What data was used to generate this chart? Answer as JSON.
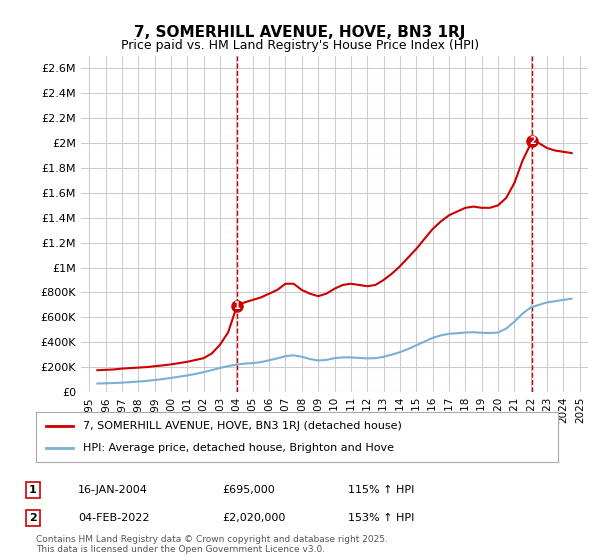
{
  "title": "7, SOMERHILL AVENUE, HOVE, BN3 1RJ",
  "subtitle": "Price paid vs. HM Land Registry's House Price Index (HPI)",
  "legend_line1": "7, SOMERHILL AVENUE, HOVE, BN3 1RJ (detached house)",
  "legend_line2": "HPI: Average price, detached house, Brighton and Hove",
  "annotation1_label": "1",
  "annotation1_date": "16-JAN-2004",
  "annotation1_price": "£695,000",
  "annotation1_hpi": "115% ↑ HPI",
  "annotation1_year": 2004.04,
  "annotation1_value": 695000,
  "annotation2_label": "2",
  "annotation2_date": "04-FEB-2022",
  "annotation2_price": "£2,020,000",
  "annotation2_hpi": "153% ↑ HPI",
  "annotation2_year": 2022.09,
  "annotation2_value": 2020000,
  "footer": "Contains HM Land Registry data © Crown copyright and database right 2025.\nThis data is licensed under the Open Government Licence v3.0.",
  "property_color": "#cc0000",
  "hpi_color": "#7ab0d4",
  "ylim_min": 0,
  "ylim_max": 2700000,
  "ytick_values": [
    0,
    200000,
    400000,
    600000,
    800000,
    1000000,
    1200000,
    1400000,
    1600000,
    1800000,
    2000000,
    2200000,
    2400000,
    2600000
  ],
  "ytick_labels": [
    "£0",
    "£200K",
    "£400K",
    "£600K",
    "£800K",
    "£1M",
    "£1.2M",
    "£1.4M",
    "£1.6M",
    "£1.8M",
    "£2M",
    "£2.2M",
    "£2.4M",
    "£2.6M"
  ],
  "xlim_min": 1994.5,
  "xlim_max": 2025.5,
  "property_years": [
    1995.5,
    1996.0,
    1996.5,
    1997.0,
    1997.5,
    1998.0,
    1998.5,
    1999.0,
    1999.5,
    2000.0,
    2000.5,
    2001.0,
    2001.5,
    2002.0,
    2002.5,
    2003.0,
    2003.5,
    2004.04,
    2004.5,
    2005.0,
    2005.5,
    2006.0,
    2006.5,
    2007.0,
    2007.5,
    2008.0,
    2008.5,
    2009.0,
    2009.5,
    2010.0,
    2010.5,
    2011.0,
    2011.5,
    2012.0,
    2012.5,
    2013.0,
    2013.5,
    2014.0,
    2014.5,
    2015.0,
    2015.5,
    2016.0,
    2016.5,
    2017.0,
    2017.5,
    2018.0,
    2018.5,
    2019.0,
    2019.5,
    2020.0,
    2020.5,
    2021.0,
    2021.5,
    2022.09,
    2022.5,
    2023.0,
    2023.5,
    2024.0,
    2024.5
  ],
  "property_values": [
    175000,
    178000,
    181000,
    188000,
    192000,
    196000,
    200000,
    207000,
    214000,
    222000,
    232000,
    243000,
    257000,
    272000,
    310000,
    380000,
    480000,
    695000,
    720000,
    740000,
    760000,
    790000,
    820000,
    870000,
    870000,
    820000,
    790000,
    770000,
    790000,
    830000,
    860000,
    870000,
    860000,
    850000,
    860000,
    900000,
    950000,
    1010000,
    1080000,
    1150000,
    1230000,
    1310000,
    1370000,
    1420000,
    1450000,
    1480000,
    1490000,
    1480000,
    1480000,
    1500000,
    1560000,
    1680000,
    1860000,
    2020000,
    2000000,
    1960000,
    1940000,
    1930000,
    1920000
  ],
  "hpi_years": [
    1995.5,
    1996.0,
    1996.5,
    1997.0,
    1997.5,
    1998.0,
    1998.5,
    1999.0,
    1999.5,
    2000.0,
    2000.5,
    2001.0,
    2001.5,
    2002.0,
    2002.5,
    2003.0,
    2003.5,
    2004.0,
    2004.5,
    2005.0,
    2005.5,
    2006.0,
    2006.5,
    2007.0,
    2007.5,
    2008.0,
    2008.5,
    2009.0,
    2009.5,
    2010.0,
    2010.5,
    2011.0,
    2011.5,
    2012.0,
    2012.5,
    2013.0,
    2013.5,
    2014.0,
    2014.5,
    2015.0,
    2015.5,
    2016.0,
    2016.5,
    2017.0,
    2017.5,
    2018.0,
    2018.5,
    2019.0,
    2019.5,
    2020.0,
    2020.5,
    2021.0,
    2021.5,
    2022.0,
    2022.5,
    2023.0,
    2023.5,
    2024.0,
    2024.5
  ],
  "hpi_values": [
    68000,
    70000,
    72000,
    75000,
    79000,
    84000,
    89000,
    96000,
    104000,
    113000,
    123000,
    133000,
    145000,
    160000,
    176000,
    193000,
    208000,
    220000,
    228000,
    232000,
    240000,
    255000,
    270000,
    288000,
    295000,
    283000,
    265000,
    253000,
    258000,
    272000,
    278000,
    278000,
    274000,
    270000,
    272000,
    283000,
    300000,
    320000,
    345000,
    375000,
    405000,
    435000,
    455000,
    468000,
    472000,
    478000,
    480000,
    476000,
    474000,
    478000,
    510000,
    565000,
    630000,
    680000,
    700000,
    720000,
    730000,
    740000,
    750000
  ],
  "grid_color": "#cccccc",
  "background_color": "#ffffff"
}
